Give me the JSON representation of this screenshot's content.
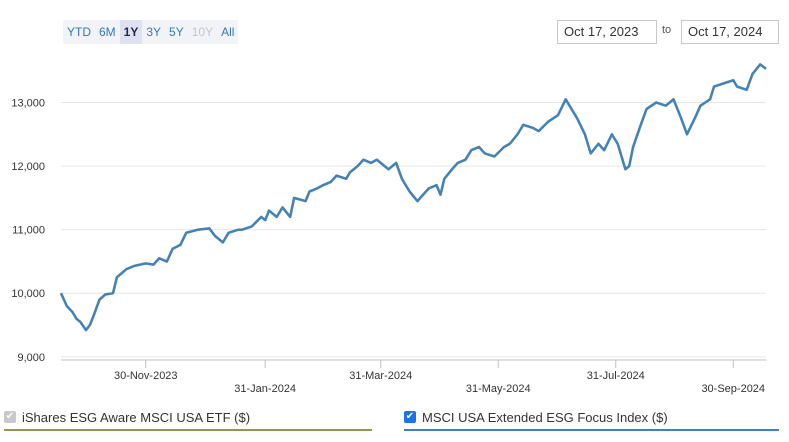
{
  "range_buttons": [
    {
      "label": "YTD",
      "state": "normal"
    },
    {
      "label": "6M",
      "state": "normal"
    },
    {
      "label": "1Y",
      "state": "active"
    },
    {
      "label": "3Y",
      "state": "normal"
    },
    {
      "label": "5Y",
      "state": "normal"
    },
    {
      "label": "10Y",
      "state": "disabled"
    },
    {
      "label": "All",
      "state": "normal"
    }
  ],
  "date_range": {
    "from": "Oct 17, 2023",
    "to_label": "to",
    "to": "Oct 17, 2024"
  },
  "legend": [
    {
      "label": "iShares ESG Aware MSCI USA ETF ($)",
      "checked": true,
      "checkbox_color": "#c9c9c9",
      "underline_color": "#8c9a4b"
    },
    {
      "label": "MSCI USA Extended ESG Focus Index ($)",
      "checked": true,
      "checkbox_color": "#1a73e8",
      "underline_color": "#3c82c8"
    }
  ],
  "colors": {
    "index_line": "#3c82c8",
    "etf_line": "#8c9a4b",
    "grid": "#e6e6e6",
    "axis": "#c0c0c0"
  },
  "chart_data": {
    "type": "line",
    "x_start": "2023-10-17",
    "x_end": "2024-10-17",
    "ylim": [
      8950,
      13700
    ],
    "yticks": [
      9000,
      10000,
      11000,
      12000,
      13000
    ],
    "ytick_labels": [
      "9,000",
      "10,000",
      "11,000",
      "12,000",
      "13,000"
    ],
    "xticks": [
      {
        "date": "2023-11-30",
        "label": "30-Nov-2023"
      },
      {
        "date": "2024-01-31",
        "label": "31-Jan-2024"
      },
      {
        "date": "2024-03-31",
        "label": "31-Mar-2024"
      },
      {
        "date": "2024-05-31",
        "label": "31-May-2024"
      },
      {
        "date": "2024-07-31",
        "label": "31-Jul-2024"
      },
      {
        "date": "2024-09-30",
        "label": "30-Sep-2024"
      }
    ],
    "grid": true,
    "series": [
      {
        "name": "MSCI USA Extended ESG Focus Index ($)",
        "points": [
          [
            "2023-10-17",
            10000
          ],
          [
            "2023-10-20",
            9800
          ],
          [
            "2023-10-23",
            9700
          ],
          [
            "2023-10-25",
            9600
          ],
          [
            "2023-10-27",
            9550
          ],
          [
            "2023-10-30",
            9420
          ],
          [
            "2023-11-01",
            9500
          ],
          [
            "2023-11-03",
            9650
          ],
          [
            "2023-11-06",
            9900
          ],
          [
            "2023-11-09",
            9980
          ],
          [
            "2023-11-13",
            10000
          ],
          [
            "2023-11-15",
            10250
          ],
          [
            "2023-11-20",
            10380
          ],
          [
            "2023-11-24",
            10430
          ],
          [
            "2023-11-30",
            10470
          ],
          [
            "2023-12-04",
            10450
          ],
          [
            "2023-12-07",
            10550
          ],
          [
            "2023-12-11",
            10500
          ],
          [
            "2023-12-14",
            10700
          ],
          [
            "2023-12-18",
            10760
          ],
          [
            "2023-12-21",
            10950
          ],
          [
            "2023-12-27",
            11000
          ],
          [
            "2024-01-02",
            11020
          ],
          [
            "2024-01-05",
            10900
          ],
          [
            "2024-01-09",
            10800
          ],
          [
            "2024-01-12",
            10950
          ],
          [
            "2024-01-17",
            11000
          ],
          [
            "2024-01-19",
            11000
          ],
          [
            "2024-01-24",
            11050
          ],
          [
            "2024-01-29",
            11200
          ],
          [
            "2024-01-31",
            11150
          ],
          [
            "2024-02-02",
            11300
          ],
          [
            "2024-02-06",
            11200
          ],
          [
            "2024-02-09",
            11350
          ],
          [
            "2024-02-13",
            11200
          ],
          [
            "2024-02-15",
            11500
          ],
          [
            "2024-02-21",
            11450
          ],
          [
            "2024-02-23",
            11600
          ],
          [
            "2024-02-27",
            11650
          ],
          [
            "2024-03-01",
            11700
          ],
          [
            "2024-03-05",
            11750
          ],
          [
            "2024-03-08",
            11850
          ],
          [
            "2024-03-13",
            11800
          ],
          [
            "2024-03-15",
            11900
          ],
          [
            "2024-03-19",
            12000
          ],
          [
            "2024-03-22",
            12100
          ],
          [
            "2024-03-26",
            12050
          ],
          [
            "2024-03-29",
            12100
          ],
          [
            "2024-04-02",
            12000
          ],
          [
            "2024-04-04",
            11950
          ],
          [
            "2024-04-08",
            12050
          ],
          [
            "2024-04-11",
            11800
          ],
          [
            "2024-04-15",
            11600
          ],
          [
            "2024-04-19",
            11450
          ],
          [
            "2024-04-22",
            11550
          ],
          [
            "2024-04-25",
            11650
          ],
          [
            "2024-04-29",
            11700
          ],
          [
            "2024-05-01",
            11550
          ],
          [
            "2024-05-03",
            11800
          ],
          [
            "2024-05-07",
            11950
          ],
          [
            "2024-05-10",
            12050
          ],
          [
            "2024-05-14",
            12100
          ],
          [
            "2024-05-17",
            12250
          ],
          [
            "2024-05-21",
            12300
          ],
          [
            "2024-05-24",
            12200
          ],
          [
            "2024-05-29",
            12150
          ],
          [
            "2024-06-03",
            12300
          ],
          [
            "2024-06-06",
            12350
          ],
          [
            "2024-06-10",
            12500
          ],
          [
            "2024-06-13",
            12650
          ],
          [
            "2024-06-18",
            12600
          ],
          [
            "2024-06-21",
            12550
          ],
          [
            "2024-06-26",
            12700
          ],
          [
            "2024-07-01",
            12800
          ],
          [
            "2024-07-05",
            13050
          ],
          [
            "2024-07-08",
            12900
          ],
          [
            "2024-07-11",
            12750
          ],
          [
            "2024-07-15",
            12500
          ],
          [
            "2024-07-18",
            12200
          ],
          [
            "2024-07-22",
            12350
          ],
          [
            "2024-07-25",
            12250
          ],
          [
            "2024-07-29",
            12500
          ],
          [
            "2024-08-01",
            12350
          ],
          [
            "2024-08-05",
            11950
          ],
          [
            "2024-08-07",
            12000
          ],
          [
            "2024-08-09",
            12300
          ],
          [
            "2024-08-13",
            12650
          ],
          [
            "2024-08-16",
            12900
          ],
          [
            "2024-08-21",
            13000
          ],
          [
            "2024-08-26",
            12950
          ],
          [
            "2024-08-30",
            13050
          ],
          [
            "2024-09-03",
            12750
          ],
          [
            "2024-09-06",
            12500
          ],
          [
            "2024-09-10",
            12750
          ],
          [
            "2024-09-13",
            12950
          ],
          [
            "2024-09-18",
            13050
          ],
          [
            "2024-09-20",
            13250
          ],
          [
            "2024-09-25",
            13300
          ],
          [
            "2024-09-30",
            13350
          ],
          [
            "2024-10-02",
            13250
          ],
          [
            "2024-10-07",
            13200
          ],
          [
            "2024-10-10",
            13450
          ],
          [
            "2024-10-14",
            13600
          ],
          [
            "2024-10-17",
            13530
          ]
        ]
      }
    ]
  }
}
